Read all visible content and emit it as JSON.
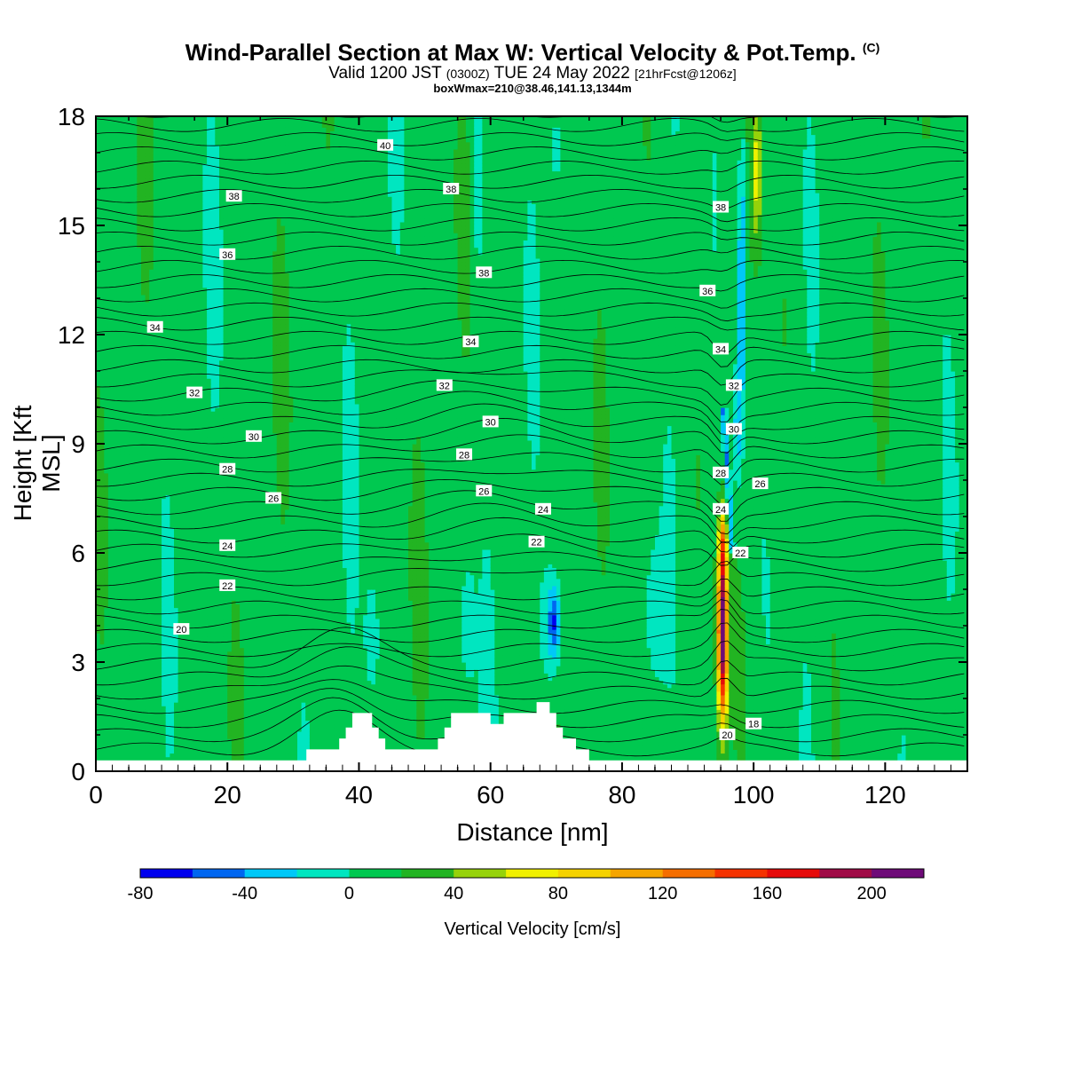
{
  "header": {
    "title": "Wind-Parallel Section at Max W: Vertical Velocity & Pot.Temp.",
    "copyright_mark": "(C)",
    "valid_prefix": "Valid 1200 JST",
    "valid_utc": "(0300Z)",
    "valid_date": "TUE 24 May 2022",
    "forecast_tag": "[21hrFcst@1206z]",
    "box_info": "boxWmax=210@38.46,141.13,1344m"
  },
  "chart_data": {
    "type": "heatmap",
    "xlabel": "Distance [nm]",
    "ylabel": "Height [Kft MSL]",
    "xlim": [
      0,
      132.5
    ],
    "ylim": [
      0,
      18
    ],
    "x_ticks": [
      0,
      20,
      40,
      60,
      80,
      100,
      120
    ],
    "y_ticks": [
      0,
      3,
      6,
      9,
      12,
      15,
      18
    ],
    "colorbar": {
      "label": "Vertical Velocity [cm/s]",
      "bounds": [
        -80,
        -60,
        -40,
        -20,
        0,
        20,
        40,
        60,
        80,
        100,
        120,
        140,
        160,
        180,
        200,
        220
      ],
      "tick_labels": [
        "-80",
        "-40",
        "0",
        "40",
        "80",
        "120",
        "160",
        "200"
      ],
      "colors": [
        "#0000ee",
        "#0066f0",
        "#00c8f8",
        "#00e6c0",
        "#00c850",
        "#22b422",
        "#96d20a",
        "#f0f000",
        "#f5d200",
        "#f5a500",
        "#f56e00",
        "#f53200",
        "#e60a0a",
        "#a00a46",
        "#6e0a78"
      ]
    },
    "theta_contour_labels": [
      {
        "x": 44,
        "y": 17.2,
        "text": "40"
      },
      {
        "x": 21,
        "y": 15.8,
        "text": "38"
      },
      {
        "x": 54,
        "y": 16.0,
        "text": "38"
      },
      {
        "x": 59,
        "y": 13.7,
        "text": "38"
      },
      {
        "x": 95,
        "y": 15.5,
        "text": "38"
      },
      {
        "x": 20,
        "y": 14.2,
        "text": "36"
      },
      {
        "x": 93,
        "y": 13.2,
        "text": "36"
      },
      {
        "x": 9,
        "y": 12.2,
        "text": "34"
      },
      {
        "x": 57,
        "y": 11.8,
        "text": "34"
      },
      {
        "x": 95,
        "y": 11.6,
        "text": "34"
      },
      {
        "x": 15,
        "y": 10.4,
        "text": "32"
      },
      {
        "x": 53,
        "y": 10.6,
        "text": "32"
      },
      {
        "x": 97,
        "y": 10.6,
        "text": "32"
      },
      {
        "x": 24,
        "y": 9.2,
        "text": "30"
      },
      {
        "x": 60,
        "y": 9.6,
        "text": "30"
      },
      {
        "x": 97,
        "y": 9.4,
        "text": "30"
      },
      {
        "x": 20,
        "y": 8.3,
        "text": "28"
      },
      {
        "x": 56,
        "y": 8.7,
        "text": "28"
      },
      {
        "x": 95,
        "y": 8.2,
        "text": "28"
      },
      {
        "x": 27,
        "y": 7.5,
        "text": "26"
      },
      {
        "x": 59,
        "y": 7.7,
        "text": "26"
      },
      {
        "x": 101,
        "y": 7.9,
        "text": "26"
      },
      {
        "x": 20,
        "y": 6.2,
        "text": "24"
      },
      {
        "x": 68,
        "y": 7.2,
        "text": "24"
      },
      {
        "x": 95,
        "y": 7.2,
        "text": "24"
      },
      {
        "x": 20,
        "y": 5.1,
        "text": "22"
      },
      {
        "x": 67,
        "y": 6.3,
        "text": "22"
      },
      {
        "x": 98,
        "y": 6.0,
        "text": "22"
      },
      {
        "x": 13,
        "y": 3.9,
        "text": "20"
      },
      {
        "x": 96,
        "y": 1.0,
        "text": "20"
      },
      {
        "x": 100,
        "y": 1.3,
        "text": "18"
      }
    ],
    "max_updraft": {
      "x": 95.3,
      "y_range": [
        0.8,
        7.0
      ],
      "value_cm_s": 210
    },
    "terrain": [
      [
        0,
        0.3
      ],
      [
        32,
        0.3
      ],
      [
        32,
        0.6
      ],
      [
        37,
        0.6
      ],
      [
        37,
        0.9
      ],
      [
        38,
        0.9
      ],
      [
        38,
        1.2
      ],
      [
        39,
        1.2
      ],
      [
        39,
        1.6
      ],
      [
        42,
        1.6
      ],
      [
        42,
        1.2
      ],
      [
        43,
        1.2
      ],
      [
        43,
        0.9
      ],
      [
        44,
        0.9
      ],
      [
        44,
        0.6
      ],
      [
        52,
        0.6
      ],
      [
        52,
        0.9
      ],
      [
        53,
        0.9
      ],
      [
        53,
        1.2
      ],
      [
        54,
        1.2
      ],
      [
        54,
        1.6
      ],
      [
        60,
        1.6
      ],
      [
        60,
        1.3
      ],
      [
        62,
        1.3
      ],
      [
        62,
        1.6
      ],
      [
        67,
        1.6
      ],
      [
        67,
        1.9
      ],
      [
        69,
        1.9
      ],
      [
        69,
        1.6
      ],
      [
        70,
        1.6
      ],
      [
        70,
        1.2
      ],
      [
        71,
        1.2
      ],
      [
        71,
        0.9
      ],
      [
        73,
        0.9
      ],
      [
        73,
        0.6
      ],
      [
        75,
        0.6
      ],
      [
        75,
        0.3
      ],
      [
        132.5,
        0.3
      ]
    ]
  }
}
